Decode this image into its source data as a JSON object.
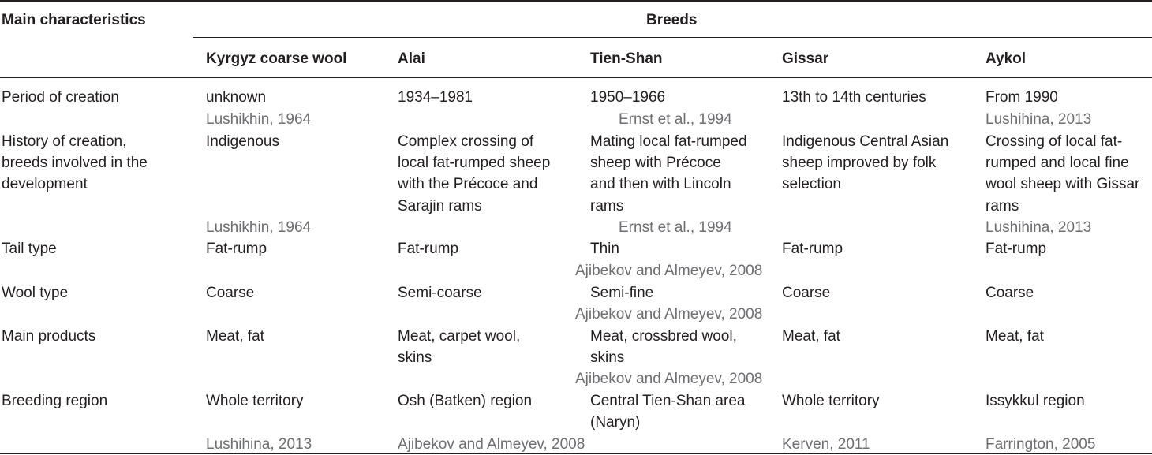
{
  "table": {
    "header": {
      "row_label": "Main characteristics",
      "group_label": "Breeds",
      "columns": [
        "Kyrgyz coarse wool",
        "Alai",
        "Tien-Shan",
        "Gissar",
        "Aykol"
      ]
    },
    "rows": {
      "period": {
        "label": "Period of creation",
        "cells": [
          "unknown",
          "1934–1981",
          "1950–1966",
          "13th to 14th centuries",
          "From 1990"
        ],
        "refs": [
          "Lushikhin, 1964",
          "Ernst et al., 1994",
          "Lushihina, 2013"
        ]
      },
      "history": {
        "label": [
          "History of creation,",
          "breeds involved in the",
          "development"
        ],
        "cells": [
          [
            "Indigenous"
          ],
          [
            "Complex crossing of",
            "local fat-rumped sheep",
            "with the Précoce and",
            "Sarajin rams"
          ],
          [
            "Mating local fat-rumped",
            "sheep with Précoce",
            "and then with Lincoln",
            "rams"
          ],
          [
            "Indigenous Central Asian",
            "sheep improved by folk",
            "selection"
          ],
          [
            "Crossing of local fat-",
            "rumped and local fine",
            "wool sheep with Gissar",
            "rams"
          ]
        ],
        "refs": [
          "Lushikhin, 1964",
          "Ernst et al., 1994",
          "Lushihina, 2013"
        ]
      },
      "tail": {
        "label": "Tail type",
        "cells": [
          "Fat-rump",
          "Fat-rump",
          "Thin",
          "Fat-rump",
          "Fat-rump"
        ],
        "refs": [
          "Ajibekov and Almeyev, 2008"
        ]
      },
      "wool": {
        "label": "Wool type",
        "cells": [
          "Coarse",
          "Semi-coarse",
          "Semi-fine",
          "Coarse",
          "Coarse"
        ],
        "refs": [
          "Ajibekov and Almeyev, 2008"
        ]
      },
      "products": {
        "label": "Main products",
        "cells": [
          [
            "Meat, fat"
          ],
          [
            "Meat, carpet wool,",
            "skins"
          ],
          [
            "Meat, crossbred wool,",
            "skins"
          ],
          [
            "Meat, fat"
          ],
          [
            "Meat, fat"
          ]
        ],
        "refs": [
          "Ajibekov and Almeyev, 2008"
        ]
      },
      "region": {
        "label": "Breeding region",
        "cells": [
          [
            "Whole territory"
          ],
          [
            "Osh (Batken) region"
          ],
          [
            "Central Tien-Shan area",
            "(Naryn)"
          ],
          [
            "Whole territory"
          ],
          [
            "Issykkul region"
          ]
        ],
        "refs": [
          "Lushihina, 2013",
          "Ajibekov and Almeyev, 2008",
          "Kerven, 2011",
          "Farrington, 2005"
        ]
      }
    }
  }
}
